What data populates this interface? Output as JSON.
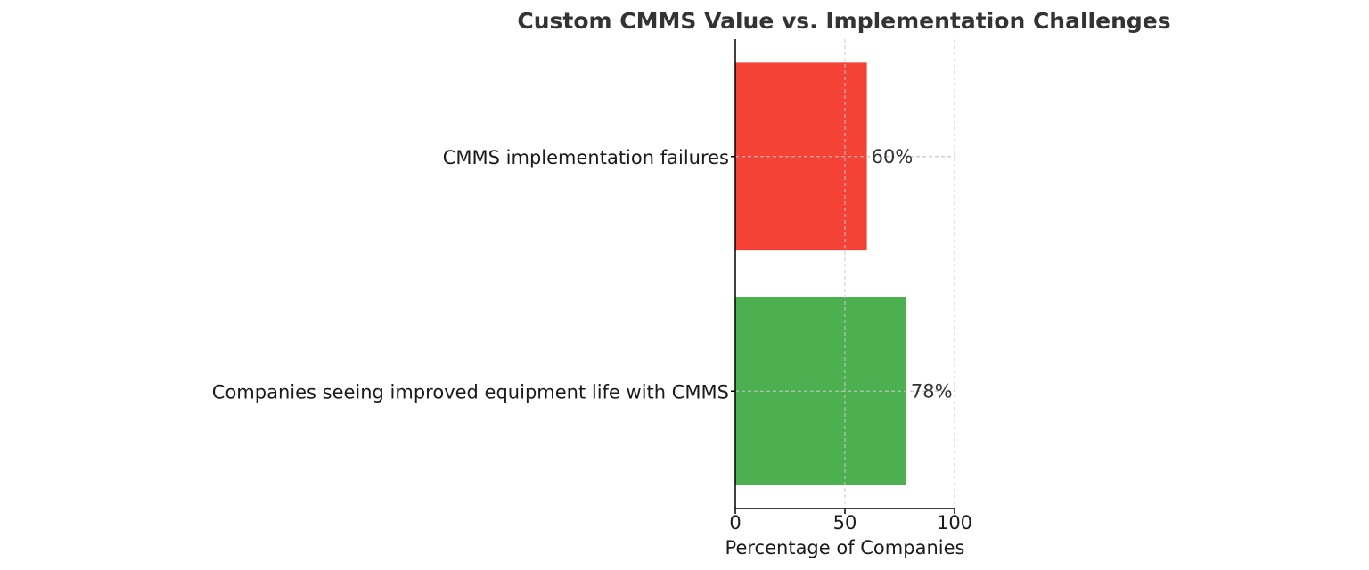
{
  "chart_data": {
    "type": "bar",
    "orientation": "horizontal",
    "title": "Custom CMMS Value vs. Implementation Challenges",
    "xlabel": "Percentage of Companies",
    "ylabel": "",
    "xlim": [
      0,
      100
    ],
    "xticks": [
      "0",
      "50",
      "100"
    ],
    "grid": true,
    "categories": [
      "Companies seeing improved equipment life with CMMS",
      "CMMS implementation failures"
    ],
    "values": [
      78,
      60
    ],
    "data_labels": [
      "78%",
      "60%"
    ],
    "colors": [
      "#4caf50",
      "#f44336"
    ]
  }
}
